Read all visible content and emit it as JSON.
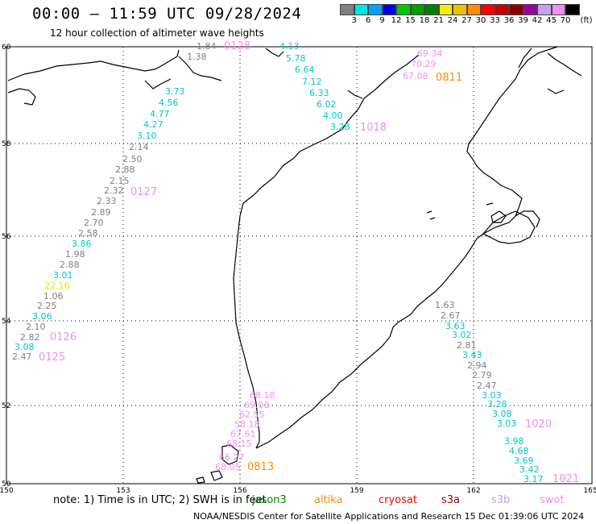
{
  "header": {
    "title": "00:00 – 11:59 UTC 09/28/2024",
    "subtitle": "12 hour collection of altimeter wave heights"
  },
  "legend": {
    "colors": [
      "#808080",
      "#00e6e6",
      "#00a0ff",
      "#0000e6",
      "#00c800",
      "#00a000",
      "#008000",
      "#f0f000",
      "#f0c000",
      "#ff8c00",
      "#ff0000",
      "#c80000",
      "#8c0000",
      "#a000a0",
      "#c8a0f0",
      "#f090f0",
      "#000000"
    ],
    "labels": [
      "3",
      "6",
      "9",
      "12",
      "15",
      "18",
      "21",
      "24",
      "27",
      "30",
      "33",
      "36",
      "39",
      "42",
      "45",
      "70",
      "(ft)"
    ]
  },
  "axes": {
    "x_ticks": [
      "150",
      "153",
      "156",
      "159",
      "162",
      "165"
    ],
    "y_ticks": [
      "60",
      "58",
      "56",
      "54",
      "52",
      "50"
    ]
  },
  "tracks": [
    {
      "labels": [
        {
          "t": "1.84",
          "c": "#808080"
        },
        {
          "t": "1.38",
          "c": "#808080"
        },
        {
          "t": "3.73",
          "c": "#00c8c8"
        },
        {
          "t": "4.56",
          "c": "#00c8c8"
        },
        {
          "t": "4.77",
          "c": "#00c8c8"
        },
        {
          "t": "4.27",
          "c": "#00c8c8"
        },
        {
          "t": "3.10",
          "c": "#00c8c8"
        },
        {
          "t": "2.14",
          "c": "#808080"
        },
        {
          "t": "2.50",
          "c": "#808080"
        },
        {
          "t": "2.88",
          "c": "#808080"
        },
        {
          "t": "2.15",
          "c": "#808080"
        },
        {
          "t": "2.32",
          "c": "#808080"
        },
        {
          "t": "2.33",
          "c": "#808080"
        },
        {
          "t": "2.89",
          "c": "#808080"
        },
        {
          "t": "2.70",
          "c": "#808080"
        },
        {
          "t": "2.58",
          "c": "#808080"
        },
        {
          "t": "3.86",
          "c": "#00c8c8"
        },
        {
          "t": "1.98",
          "c": "#808080"
        },
        {
          "t": "2.88",
          "c": "#808080"
        },
        {
          "t": "3.01",
          "c": "#00c8c8"
        },
        {
          "t": "22.16",
          "c": "#e6e600"
        },
        {
          "t": "1.06",
          "c": "#808080"
        },
        {
          "t": "2.25",
          "c": "#808080"
        },
        {
          "t": "3.06",
          "c": "#00c8c8"
        },
        {
          "t": "2.10",
          "c": "#808080"
        },
        {
          "t": "2.82",
          "c": "#808080"
        },
        {
          "t": "3.08",
          "c": "#00c8c8"
        },
        {
          "t": "2.47",
          "c": "#808080"
        }
      ]
    },
    {
      "labels": [
        {
          "t": "4.13",
          "c": "#00c8c8"
        },
        {
          "t": "5.78",
          "c": "#00c8c8"
        },
        {
          "t": "6.64",
          "c": "#00c8c8"
        },
        {
          "t": "7.12",
          "c": "#00c8c8"
        },
        {
          "t": "6.33",
          "c": "#00c8c8"
        },
        {
          "t": "6.02",
          "c": "#00c8c8"
        },
        {
          "t": "4.00",
          "c": "#00c8c8"
        },
        {
          "t": "3.28",
          "c": "#00c8c8"
        }
      ]
    },
    {
      "labels": [
        {
          "t": "69.34",
          "c": "#f090f0"
        },
        {
          "t": "70.29",
          "c": "#f090f0"
        },
        {
          "t": "67.08",
          "c": "#f090f0"
        }
      ]
    },
    {
      "labels": [
        {
          "t": "1.63",
          "c": "#808080"
        },
        {
          "t": "2.67",
          "c": "#808080"
        },
        {
          "t": "3.63",
          "c": "#00c8c8"
        },
        {
          "t": "3.02",
          "c": "#00c8c8"
        },
        {
          "t": "2.81",
          "c": "#808080"
        },
        {
          "t": "3.43",
          "c": "#00c8c8"
        },
        {
          "t": "2.94",
          "c": "#808080"
        },
        {
          "t": "2.79",
          "c": "#808080"
        },
        {
          "t": "2.47",
          "c": "#808080"
        },
        {
          "t": "3.03",
          "c": "#00c8c8"
        },
        {
          "t": "3.28",
          "c": "#00c8c8"
        },
        {
          "t": "3.08",
          "c": "#00c8c8"
        },
        {
          "t": "3.03",
          "c": "#00c8c8"
        },
        {
          "t": "3.98",
          "c": "#00c8c8"
        },
        {
          "t": "4.68",
          "c": "#00c8c8"
        },
        {
          "t": "3.69",
          "c": "#00c8c8"
        },
        {
          "t": "3.42",
          "c": "#00c8c8"
        },
        {
          "t": "3.17",
          "c": "#00c8c8"
        }
      ]
    },
    {
      "labels": [
        {
          "t": "68.18",
          "c": "#f090f0"
        },
        {
          "t": "69.08",
          "c": "#f090f0"
        },
        {
          "t": "62.55",
          "c": "#f090f0"
        },
        {
          "t": "58.18",
          "c": "#f090f0"
        },
        {
          "t": "67.61",
          "c": "#f090f0"
        },
        {
          "t": "68.15",
          "c": "#f090f0"
        },
        {
          "t": "66.27",
          "c": "#f090f0"
        },
        {
          "t": "68.05",
          "c": "#f090f0"
        }
      ]
    }
  ],
  "time_tags": [
    {
      "t": "0128",
      "c": "#f090f0"
    },
    {
      "t": "0811",
      "c": "#ff8c00"
    },
    {
      "t": "1018",
      "c": "#f090f0"
    },
    {
      "t": "0127",
      "c": "#f090f0"
    },
    {
      "t": "0126",
      "c": "#f090f0"
    },
    {
      "t": "0125",
      "c": "#f090f0"
    },
    {
      "t": "1020",
      "c": "#f090f0"
    },
    {
      "t": "1021",
      "c": "#f090f0"
    },
    {
      "t": "0813",
      "c": "#ff8c00"
    }
  ],
  "footer": {
    "note": "note: 1) Time is in UTC; 2) SWH is in feet",
    "missions": [
      {
        "t": "jason3",
        "c": "#008000"
      },
      {
        "t": "altika",
        "c": "#ff8c00"
      },
      {
        "t": "cryosat",
        "c": "#ff0000"
      },
      {
        "t": "s3a",
        "c": "#a00000"
      },
      {
        "t": "s3b",
        "c": "#c8a0f0"
      },
      {
        "t": "swot",
        "c": "#f090f0"
      }
    ],
    "credit": "NOAA/NESDIS Center for Satellite Applications and Research   15 Dec 01:39:06 UTC 2024"
  }
}
